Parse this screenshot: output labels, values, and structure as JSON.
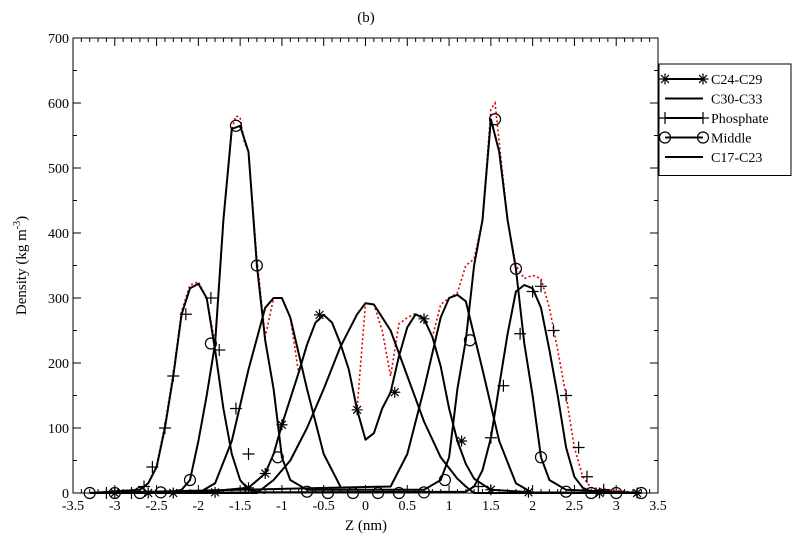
{
  "chart_data": {
    "type": "line",
    "title": "(b)",
    "xlabel": "Z (nm)",
    "ylabel_main": "Density (kg m",
    "ylabel_sup": "-3",
    "ylabel_close": ")",
    "xlim": [
      -3.5,
      3.5
    ],
    "ylim": [
      0,
      700
    ],
    "xticks": [
      -3.5,
      -3,
      -2.5,
      -2,
      -1.5,
      -1,
      -0.5,
      0,
      0.5,
      1,
      1.5,
      2,
      2.5,
      3,
      3.5
    ],
    "xtick_labels": [
      "-3.5",
      "-3",
      "-2.5",
      "-2",
      "-1.5",
      "-1",
      "-0.5",
      "0",
      "0.5",
      "1",
      "1.5",
      "2",
      "2.5",
      "3",
      "3.5"
    ],
    "yticks": [
      0,
      100,
      200,
      300,
      400,
      500,
      600,
      700
    ],
    "ytick_labels": [
      "0",
      "100",
      "200",
      "300",
      "400",
      "500",
      "600",
      "700"
    ],
    "legend_position": "top-right",
    "colors": {
      "series": "#000000",
      "reference": "#e00000"
    },
    "series": [
      {
        "name": "C24-C29",
        "marker": "star",
        "x": [
          -3.3,
          -2.0,
          -1.4,
          -1.2,
          -1.1,
          -1.0,
          -0.8,
          -0.7,
          -0.6,
          -0.5,
          -0.4,
          -0.3,
          -0.2,
          -0.1,
          0.0,
          0.1,
          0.2,
          0.3,
          0.4,
          0.5,
          0.6,
          0.7,
          0.8,
          0.9,
          1.0,
          1.1,
          1.2,
          1.3,
          1.5,
          2.0,
          3.3
        ],
        "y": [
          0,
          1,
          8,
          30,
          60,
          105,
          185,
          228,
          262,
          274,
          262,
          230,
          190,
          128,
          82,
          92,
          130,
          155,
          210,
          255,
          275,
          268,
          240,
          195,
          130,
          80,
          45,
          22,
          5,
          1,
          0
        ],
        "marker_x": [
          -3.0,
          -2.6,
          -2.3,
          -1.8,
          -1.4,
          -1.2,
          -1.0,
          -0.55,
          -0.1,
          0.35,
          0.7,
          1.15,
          1.5,
          1.95,
          2.8,
          3.25
        ],
        "marker_y": [
          0,
          0,
          0,
          1,
          8,
          30,
          105,
          274,
          128,
          155,
          268,
          80,
          5,
          1,
          0,
          0
        ]
      },
      {
        "name": "C30-C33",
        "marker": "none",
        "x": [
          -3.3,
          -1.3,
          -1.2,
          -1.1,
          -0.9,
          -0.7,
          -0.5,
          -0.3,
          -0.1,
          0.0,
          0.1,
          0.3,
          0.5,
          0.7,
          0.9,
          1.1,
          1.2,
          1.3,
          3.3
        ],
        "y": [
          0,
          0,
          10,
          20,
          50,
          100,
          160,
          225,
          275,
          292,
          290,
          250,
          180,
          110,
          55,
          22,
          10,
          0,
          0
        ]
      },
      {
        "name": "Phosphate",
        "marker": "plus",
        "x": [
          -3.3,
          -2.7,
          -2.6,
          -2.5,
          -2.4,
          -2.3,
          -2.2,
          -2.1,
          -2.0,
          -1.9,
          -1.8,
          -1.7,
          -1.6,
          -1.5,
          -1.4,
          -1.3,
          -1.2,
          -3.3,
          1.2,
          1.3,
          1.4,
          1.5,
          1.6,
          1.7,
          1.8,
          1.9,
          2.0,
          2.1,
          2.2,
          2.3,
          2.4,
          2.5,
          2.6,
          2.7,
          3.3
        ],
        "y": [
          0,
          5,
          15,
          40,
          100,
          180,
          275,
          315,
          322,
          300,
          220,
          130,
          60,
          20,
          5,
          2,
          0,
          0,
          2,
          10,
          35,
          85,
          165,
          245,
          310,
          320,
          315,
          285,
          220,
          150,
          70,
          25,
          8,
          2,
          0
        ],
        "marker_x": [
          -3.1,
          -2.8,
          -2.65,
          -2.55,
          -2.4,
          -2.3,
          -2.15,
          -1.85,
          -1.75,
          -1.55,
          -1.4,
          1.35,
          1.5,
          1.65,
          1.85,
          2.0,
          2.1,
          2.25,
          2.4,
          2.55,
          2.65,
          2.85
        ],
        "marker_y": [
          0,
          0,
          10,
          40,
          100,
          180,
          275,
          300,
          220,
          130,
          60,
          10,
          85,
          165,
          245,
          310,
          318,
          250,
          150,
          70,
          25,
          5
        ]
      },
      {
        "name": "Middle",
        "marker": "circle",
        "x": [
          -3.3,
          -2.4,
          -2.2,
          -2.1,
          -2.0,
          -1.9,
          -1.8,
          -1.7,
          -1.6,
          -1.5,
          -1.4,
          -1.3,
          -1.2,
          -1.1,
          -1.0,
          -0.9,
          -0.7,
          0.7,
          0.9,
          1.0,
          1.1,
          1.2,
          1.3,
          1.4,
          1.5,
          1.6,
          1.7,
          1.8,
          1.9,
          2.0,
          2.1,
          2.2,
          2.4,
          3.3
        ],
        "y": [
          0,
          0,
          5,
          20,
          80,
          150,
          230,
          420,
          560,
          565,
          525,
          350,
          235,
          160,
          55,
          20,
          5,
          5,
          20,
          55,
          160,
          235,
          350,
          420,
          575,
          525,
          420,
          345,
          230,
          150,
          55,
          20,
          5,
          0
        ],
        "marker_x": [
          -3.3,
          -3.0,
          -2.7,
          -2.45,
          -2.1,
          -1.85,
          -1.55,
          -1.3,
          -1.05,
          -0.7,
          -0.45,
          -0.15,
          0.15,
          0.4,
          0.7,
          0.95,
          1.25,
          1.55,
          1.8,
          2.1,
          2.4,
          2.7,
          3.0,
          3.3
        ],
        "marker_y": [
          0,
          0,
          0,
          1,
          20,
          230,
          565,
          350,
          55,
          2,
          0,
          0,
          0,
          0,
          1,
          20,
          235,
          575,
          345,
          55,
          2,
          0,
          0,
          0
        ]
      },
      {
        "name": "C17-C23",
        "marker": "none",
        "x": [
          -3.3,
          -2.0,
          -1.8,
          -1.6,
          -1.4,
          -1.2,
          -1.1,
          -1.0,
          -0.9,
          -0.7,
          -0.5,
          -0.3,
          -3.3,
          0.3,
          0.5,
          0.7,
          0.9,
          1.0,
          1.1,
          1.2,
          1.4,
          1.6,
          1.8,
          2.0,
          3.3
        ],
        "y": [
          0,
          0,
          15,
          80,
          190,
          285,
          300,
          300,
          270,
          160,
          60,
          10,
          0,
          10,
          60,
          160,
          270,
          300,
          305,
          295,
          190,
          80,
          15,
          0,
          0
        ]
      }
    ],
    "reference_curves": [
      {
        "x": [
          -3.3,
          -2.7,
          -2.6,
          -2.5,
          -2.4,
          -2.3,
          -2.2,
          -2.1,
          -2.0,
          -1.9,
          -1.8,
          -1.7,
          -1.6,
          -1.55,
          -1.5,
          -1.45,
          -1.4,
          -1.3,
          -1.2,
          -1.1,
          -1.0,
          -0.9,
          -0.8,
          -0.7,
          -0.6,
          -0.5,
          -0.4,
          -0.3,
          -0.2,
          -0.1,
          0.0,
          0.1,
          0.2,
          0.3,
          0.4,
          0.5,
          0.6,
          0.7,
          0.8,
          0.9,
          1.0,
          1.1,
          1.2,
          1.3,
          1.4,
          1.5,
          1.55,
          1.6,
          1.7,
          1.8,
          1.9,
          2.0,
          2.1,
          2.2,
          2.3,
          2.4,
          2.5,
          2.6,
          2.7,
          3.3
        ],
        "y": [
          0,
          5,
          15,
          42,
          105,
          185,
          280,
          320,
          325,
          300,
          230,
          420,
          560,
          580,
          578,
          540,
          525,
          360,
          240,
          300,
          300,
          270,
          185,
          230,
          262,
          274,
          262,
          230,
          190,
          130,
          292,
          290,
          250,
          180,
          260,
          270,
          276,
          268,
          240,
          290,
          300,
          308,
          350,
          360,
          420,
          590,
          600,
          540,
          420,
          350,
          330,
          335,
          330,
          285,
          220,
          150,
          70,
          25,
          8,
          0
        ]
      }
    ]
  }
}
